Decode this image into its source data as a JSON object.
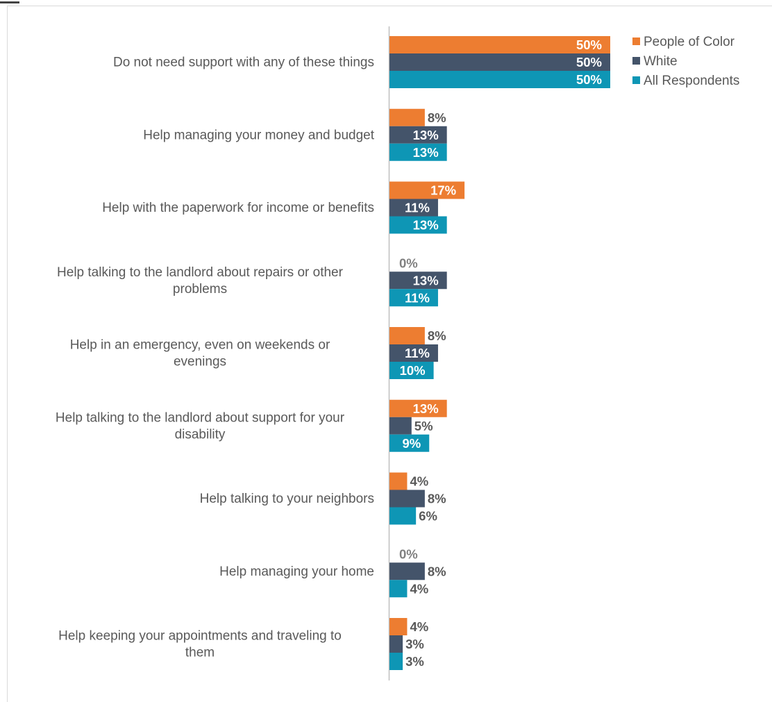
{
  "chart_data": {
    "type": "bar",
    "orientation": "horizontal",
    "categories": [
      [
        "Do not need support with any of these things"
      ],
      [
        "Help managing your money and budget"
      ],
      [
        "Help with the paperwork for income or benefits"
      ],
      [
        "Help talking to the landlord about repairs or other",
        "problems"
      ],
      [
        "Help in an emergency,  even on weekends or",
        "evenings"
      ],
      [
        "Help talking to the landlord about support for your",
        "disability"
      ],
      [
        "Help talking to your neighbors"
      ],
      [
        "Help managing your home"
      ],
      [
        "Help keeping your appointments and traveling to",
        "them"
      ]
    ],
    "series": [
      {
        "name": "People of Color",
        "color": "#ED7D31",
        "values": [
          50,
          8,
          17,
          0,
          8,
          13,
          4,
          0,
          4
        ]
      },
      {
        "name": "White",
        "color": "#44546A",
        "values": [
          50,
          13,
          11,
          13,
          11,
          5,
          8,
          8,
          3
        ]
      },
      {
        "name": "All Respondents",
        "color": "#0E96B5",
        "values": [
          50,
          13,
          13,
          11,
          10,
          9,
          6,
          4,
          3
        ]
      }
    ],
    "value_suffix": "%",
    "xlim": [
      0,
      50
    ],
    "grid": false,
    "legend_position": "top-right"
  }
}
